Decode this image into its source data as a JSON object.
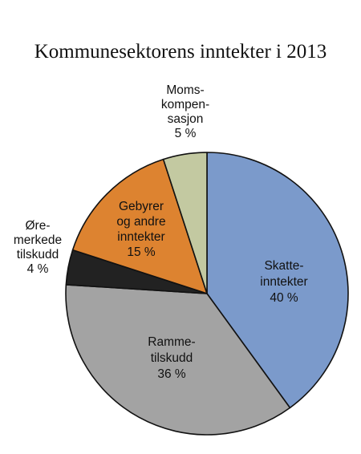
{
  "chart_data": {
    "type": "pie",
    "title": "Kommunesektorens inntekter i 2013",
    "start_angle_deg": 0,
    "direction": "clockwise",
    "slices": [
      {
        "key": "skatteinntekter",
        "label_lines": [
          "Skatte-",
          "inntekter",
          "40 %"
        ],
        "value": 40,
        "color": "#7b9acb",
        "label_position": "inside"
      },
      {
        "key": "rammetilskudd",
        "label_lines": [
          "Ramme-",
          "tilskudd",
          "36 %"
        ],
        "value": 36,
        "color": "#a3a3a3",
        "label_position": "inside"
      },
      {
        "key": "oremerkede-tilskudd",
        "label_lines": [
          "Øre-",
          "merkede",
          "tilskudd",
          "4 %"
        ],
        "value": 4,
        "color": "#222222",
        "label_position": "outside"
      },
      {
        "key": "gebyrer",
        "label_lines": [
          "Gebyrer",
          "og andre",
          "inntekter",
          "15 %"
        ],
        "value": 15,
        "color": "#dd8330",
        "label_position": "inside"
      },
      {
        "key": "momskompensasjon",
        "label_lines": [
          "Moms-",
          "kompen-",
          "sasjon",
          "5 %"
        ],
        "value": 5,
        "color": "#c3c9a1",
        "label_position": "outside"
      }
    ]
  }
}
